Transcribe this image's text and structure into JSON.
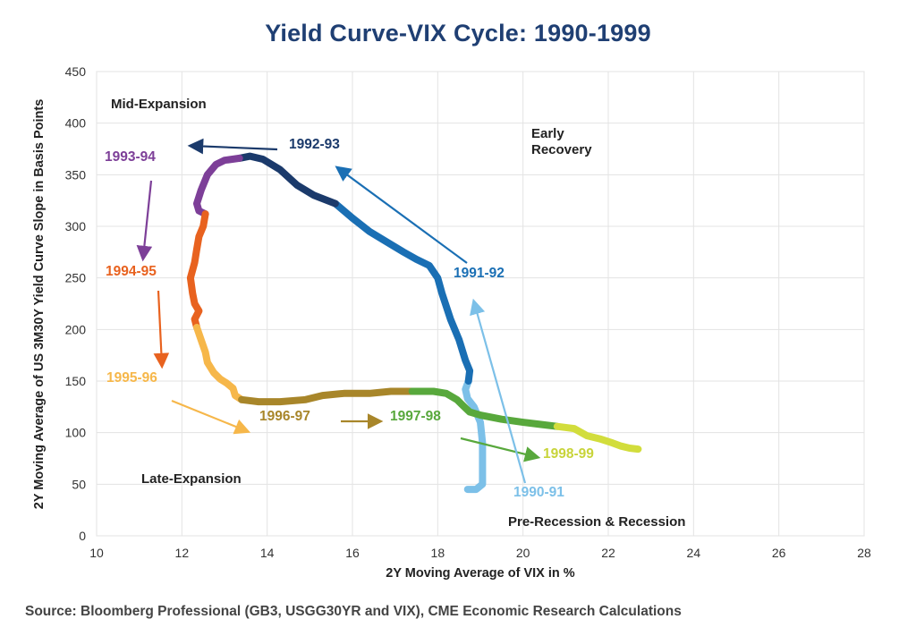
{
  "chart_data": {
    "type": "line",
    "title": "Yield Curve-VIX Cycle: 1990-1999",
    "xlabel": "2Y Moving Average of VIX in %",
    "ylabel": "2Y Moving Average of US 3M30Y Yield Curve Slope in Basis Points",
    "xlim": [
      10,
      28
    ],
    "ylim": [
      0,
      450
    ],
    "xticks": [
      "10",
      "12",
      "14",
      "16",
      "18",
      "20",
      "22",
      "24",
      "26",
      "28"
    ],
    "yticks": [
      "0",
      "50",
      "100",
      "150",
      "200",
      "250",
      "300",
      "350",
      "400",
      "450"
    ],
    "grid": true,
    "series": [
      {
        "name": "1990-91",
        "color": "#7cc0e8",
        "points": [
          [
            18.7,
            45
          ],
          [
            18.9,
            45
          ],
          [
            19.05,
            50
          ],
          [
            19.05,
            70
          ],
          [
            19.05,
            90
          ],
          [
            19.0,
            110
          ],
          [
            18.85,
            125
          ],
          [
            18.7,
            133
          ],
          [
            18.65,
            142
          ],
          [
            18.72,
            150
          ]
        ]
      },
      {
        "name": "1991-92",
        "color": "#1a6fb4",
        "points": [
          [
            18.72,
            150
          ],
          [
            18.75,
            160
          ],
          [
            18.65,
            170
          ],
          [
            18.5,
            190
          ],
          [
            18.3,
            210
          ],
          [
            18.1,
            235
          ],
          [
            18.0,
            250
          ],
          [
            17.8,
            262
          ],
          [
            17.5,
            268
          ],
          [
            17.2,
            275
          ],
          [
            16.8,
            285
          ],
          [
            16.4,
            295
          ],
          [
            16.0,
            308
          ],
          [
            15.6,
            322
          ]
        ]
      },
      {
        "name": "1992-93",
        "color": "#1b3a6b",
        "points": [
          [
            15.6,
            322
          ],
          [
            15.1,
            330
          ],
          [
            14.7,
            340
          ],
          [
            14.3,
            355
          ],
          [
            13.9,
            365
          ],
          [
            13.6,
            368
          ],
          [
            13.35,
            366
          ]
        ]
      },
      {
        "name": "1993-94",
        "color": "#7d3f98",
        "points": [
          [
            13.35,
            366
          ],
          [
            13.0,
            364
          ],
          [
            12.8,
            360
          ],
          [
            12.6,
            350
          ],
          [
            12.45,
            335
          ],
          [
            12.35,
            322
          ],
          [
            12.4,
            315
          ],
          [
            12.55,
            312
          ]
        ]
      },
      {
        "name": "1994-95",
        "color": "#e8621f",
        "points": [
          [
            12.55,
            312
          ],
          [
            12.5,
            300
          ],
          [
            12.4,
            290
          ],
          [
            12.35,
            278
          ],
          [
            12.3,
            265
          ],
          [
            12.2,
            250
          ],
          [
            12.25,
            235
          ],
          [
            12.3,
            225
          ],
          [
            12.4,
            218
          ],
          [
            12.3,
            210
          ],
          [
            12.35,
            202
          ]
        ]
      },
      {
        "name": "1995-96",
        "color": "#f6b74a",
        "points": [
          [
            12.35,
            202
          ],
          [
            12.45,
            190
          ],
          [
            12.55,
            178
          ],
          [
            12.6,
            168
          ],
          [
            12.75,
            158
          ],
          [
            12.9,
            152
          ],
          [
            13.05,
            148
          ],
          [
            13.2,
            143
          ],
          [
            13.25,
            136
          ],
          [
            13.4,
            132
          ]
        ]
      },
      {
        "name": "1996-97",
        "color": "#a8862a",
        "points": [
          [
            13.4,
            132
          ],
          [
            13.8,
            130
          ],
          [
            14.3,
            130
          ],
          [
            14.9,
            132
          ],
          [
            15.3,
            136
          ],
          [
            15.8,
            138
          ],
          [
            16.4,
            138
          ],
          [
            16.9,
            140
          ],
          [
            17.4,
            140
          ]
        ]
      },
      {
        "name": "1997-98",
        "color": "#58a83c",
        "points": [
          [
            17.4,
            140
          ],
          [
            17.9,
            140
          ],
          [
            18.2,
            138
          ],
          [
            18.45,
            132
          ],
          [
            18.6,
            126
          ],
          [
            18.75,
            120
          ],
          [
            19.0,
            117
          ],
          [
            19.5,
            113
          ],
          [
            20.0,
            110
          ],
          [
            20.4,
            108
          ],
          [
            20.8,
            106
          ]
        ]
      },
      {
        "name": "1998-99",
        "color": "#d2dd3c",
        "points": [
          [
            20.8,
            106
          ],
          [
            21.2,
            104
          ],
          [
            21.5,
            97
          ],
          [
            21.8,
            94
          ],
          [
            22.1,
            90
          ],
          [
            22.3,
            87
          ],
          [
            22.5,
            85
          ],
          [
            22.7,
            84
          ]
        ]
      }
    ]
  },
  "annotations": {
    "regions": {
      "mid_expansion": "Mid-Expansion",
      "early": "Early",
      "recovery": "Recovery",
      "late_expansion": "Late-Expansion",
      "pre_recession": "Pre-Recession & Recession"
    },
    "periods": [
      {
        "label": "1990-91",
        "color": "#7cc0e8"
      },
      {
        "label": "1991-92",
        "color": "#1a6fb4"
      },
      {
        "label": "1992-93",
        "color": "#1b3a6b"
      },
      {
        "label": "1993-94",
        "color": "#7d3f98"
      },
      {
        "label": "1994-95",
        "color": "#e8621f"
      },
      {
        "label": "1995-96",
        "color": "#f6b74a"
      },
      {
        "label": "1996-97",
        "color": "#a8862a"
      },
      {
        "label": "1997-98",
        "color": "#58a83c"
      },
      {
        "label": "1998-99",
        "color": "#c8d43a"
      }
    ]
  },
  "source": "Source: Bloomberg Professional (GB3, USGG30YR and VIX), CME Economic Research Calculations"
}
